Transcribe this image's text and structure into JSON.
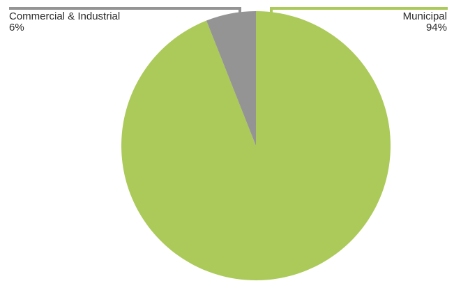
{
  "chart_data": {
    "type": "pie",
    "slices": [
      {
        "label": "Municipal",
        "value": 94,
        "display": "94%",
        "color": "#abca59"
      },
      {
        "label": "Commercial & Industrial",
        "value": 6,
        "display": "6%",
        "color": "#949494"
      }
    ]
  }
}
